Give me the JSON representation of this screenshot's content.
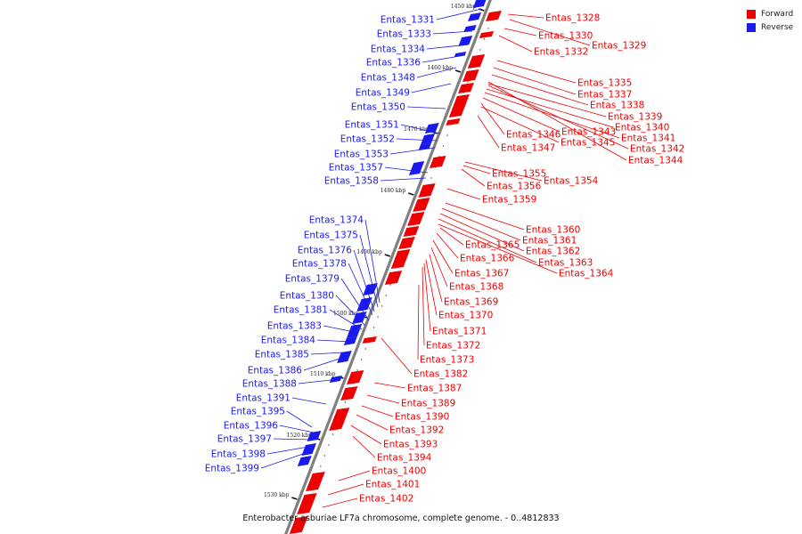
{
  "caption": "Enterobacter asburiae LF7a chromosome, complete genome. - 0..4812833",
  "legend": [
    {
      "label": "Forward",
      "color": "#ee0000"
    },
    {
      "label": "Reverse",
      "color": "#1a1aee"
    }
  ],
  "colors": {
    "forward": "#ee0000",
    "reverse": "#1a1aee",
    "axis": "#808080"
  },
  "ticks": [
    "1450 kbp",
    "1460 kbp",
    "1470 kbp",
    "1480 kbp",
    "1490 kbp",
    "1500 kbp",
    "1510 kbp",
    "1520 kbp",
    "1530 kbp"
  ],
  "reverse_labels": [
    "Entas_1331",
    "Entas_1333",
    "Entas_1334",
    "Entas_1336",
    "Entas_1348",
    "Entas_1349",
    "Entas_1350",
    "Entas_1351",
    "Entas_1352",
    "Entas_1353",
    "Entas_1357",
    "Entas_1358",
    "Entas_1374",
    "Entas_1375",
    "Entas_1376",
    "Entas_1378",
    "Entas_1379",
    "Entas_1380",
    "Entas_1381",
    "Entas_1383",
    "Entas_1384",
    "Entas_1385",
    "Entas_1386",
    "Entas_1388",
    "Entas_1391",
    "Entas_1395",
    "Entas_1396",
    "Entas_1397",
    "Entas_1398",
    "Entas_1399"
  ],
  "forward_labels": [
    "Entas_1328",
    "Entas_1330",
    "Entas_1329",
    "Entas_1332",
    "Entas_1335",
    "Entas_1337",
    "Entas_1338",
    "Entas_1339",
    "Entas_1340",
    "Entas_1343",
    "Entas_1346",
    "Entas_1341",
    "Entas_1345",
    "Entas_1347",
    "Entas_1342",
    "Entas_1344",
    "Entas_1355",
    "Entas_1354",
    "Entas_1356",
    "Entas_1359",
    "Entas_1360",
    "Entas_1361",
    "Entas_1362",
    "Entas_1365",
    "Entas_1363",
    "Entas_1366",
    "Entas_1364",
    "Entas_1367",
    "Entas_1368",
    "Entas_1369",
    "Entas_1370",
    "Entas_1371",
    "Entas_1372",
    "Entas_1373",
    "Entas_1382",
    "Entas_1387",
    "Entas_1389",
    "Entas_1390",
    "Entas_1392",
    "Entas_1393",
    "Entas_1394",
    "Entas_1400",
    "Entas_1401",
    "Entas_1402"
  ]
}
